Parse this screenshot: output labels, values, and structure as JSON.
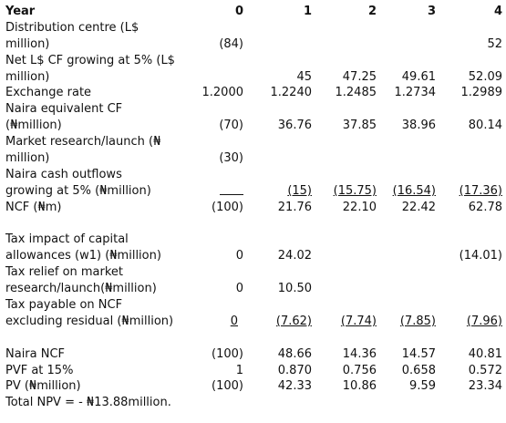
{
  "header": {
    "label": "Year",
    "cols": [
      "0",
      "1",
      "2",
      "3",
      "4"
    ]
  },
  "rows": [
    {
      "label1": "Distribution centre (L$",
      "label2": "million)",
      "vals": [
        "(84)",
        "",
        "",
        "",
        "52"
      ]
    },
    {
      "label1": "Net L$ CF growing at 5% (L$",
      "label2": "million)",
      "vals": [
        "",
        "45",
        "47.25",
        "49.61",
        "52.09"
      ]
    },
    {
      "label1": "Exchange rate",
      "vals": [
        "1.2000",
        "1.2240",
        "1.2485",
        "1.2734",
        "1.2989"
      ]
    },
    {
      "label1": "Naira equivalent CF",
      "label2": "(₦million)",
      "vals": [
        "(70)",
        "36.76",
        "37.85",
        "38.96",
        "80.14"
      ]
    },
    {
      "label1": "Market research/launch (₦",
      "label2": "million)",
      "vals": [
        "(30)",
        "",
        "",
        "",
        ""
      ]
    },
    {
      "label1": "Naira cash outflows",
      "label2": "growing at 5% (₦million)",
      "vals": [
        "",
        "(15)",
        "(15.75)",
        "(16.54)",
        "(17.36)"
      ]
    },
    {
      "label1": "NCF (₦m)",
      "vals": [
        "(100)",
        "21.76",
        "22.10",
        "22.42",
        "62.78"
      ]
    },
    {
      "label1": "Tax impact of capital",
      "label2": "allowances (w1) (₦million)",
      "vals": [
        "0",
        "24.02",
        "",
        "",
        "(14.01)"
      ]
    },
    {
      "label1": "Tax relief on market",
      "label2": "research/launch(₦million)",
      "vals": [
        "0",
        "10.50",
        "",
        "",
        ""
      ]
    },
    {
      "label1": "Tax payable on NCF",
      "label2": "excluding residual (₦million)",
      "vals": [
        "0",
        "(7.62)",
        "(7.74)",
        "(7.85)",
        "(7.96)"
      ]
    },
    {
      "label1": "Naira NCF",
      "vals": [
        "(100)",
        "48.66",
        "14.36",
        "14.57",
        "40.81"
      ]
    },
    {
      "label1": "PVF at 15%",
      "vals": [
        "1",
        "0.870",
        "0.756",
        "0.658",
        "0.572"
      ]
    },
    {
      "label1": "PV (₦million)",
      "vals": [
        "(100)",
        "42.33",
        "10.86",
        "9.59",
        "23.34"
      ]
    }
  ],
  "total": "Total NPV = - ₦13.88million."
}
